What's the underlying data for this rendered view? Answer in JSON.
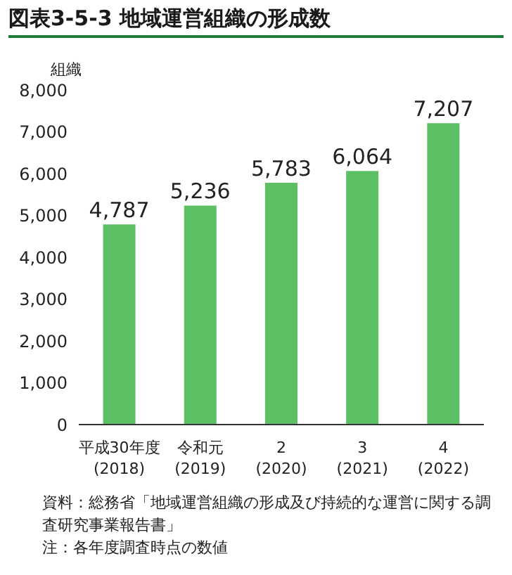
{
  "chart_data": {
    "type": "bar",
    "title": "図表3-5-3 地域運営組織の形成数",
    "ylabel": "組織",
    "categories": [
      "平成30年度\n(2018)",
      "令和元\n(2019)",
      "2\n(2020)",
      "3\n(2021)",
      "4\n(2022)"
    ],
    "values": [
      4787,
      5236,
      5783,
      6064,
      7207
    ],
    "color": "#5cbf63",
    "value_labels": [
      "4,787",
      "5,236",
      "5,783",
      "6,064",
      "7,207"
    ],
    "ylim": [
      0,
      8000
    ],
    "yticks": [
      0,
      {
        "value": 1000,
        "label": "1,000"
      },
      {
        "value": 2000,
        "label": "2,000"
      },
      {
        "value": 3000,
        "label": "3,000"
      },
      {
        "value": 4000,
        "label": "4,000"
      },
      {
        "value": 5000,
        "label": "5,000"
      },
      {
        "value": 6000,
        "label": "6,000"
      },
      {
        "value": 7000,
        "label": "7,000"
      },
      {
        "value": 8000,
        "label": "8,000"
      }
    ],
    "grid": false,
    "legend": false,
    "annotations": [
      "資料：総務省「地域運営組織の形成及び持続的な運営に関する調査研究事業報告書」",
      "注：各年度調査時点の数値"
    ]
  }
}
